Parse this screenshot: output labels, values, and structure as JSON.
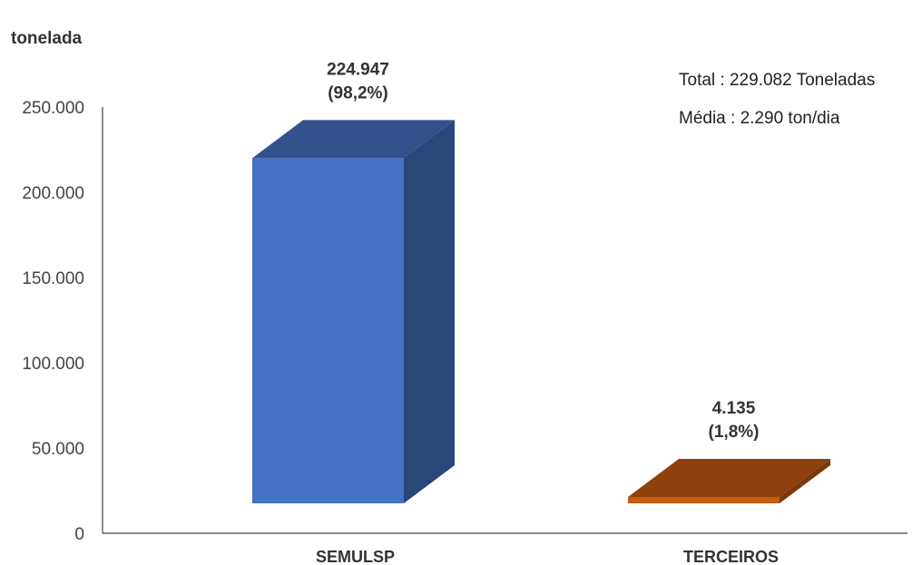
{
  "chart_data": {
    "type": "bar",
    "style": "3d",
    "ylabel": "tonelada",
    "ylim": [
      0,
      250000
    ],
    "yticks": [
      {
        "value": 0,
        "label": "0"
      },
      {
        "value": 50000,
        "label": "50.000"
      },
      {
        "value": 100000,
        "label": "100.000"
      },
      {
        "value": 150000,
        "label": "150.000"
      },
      {
        "value": 200000,
        "label": "200.000"
      },
      {
        "value": 250000,
        "label": "250.000"
      }
    ],
    "categories": [
      "SEMULSP",
      "TERCEIROS"
    ],
    "values": [
      224947,
      4135
    ],
    "data_labels": [
      {
        "value": "224.947",
        "percent": "(98,2%)"
      },
      {
        "value": "4.135",
        "percent": "(1,8%)"
      }
    ],
    "colors": [
      "#4472c4",
      "#c55a11"
    ],
    "grid": false,
    "annotations": [
      "Total : 229.082 Toneladas",
      "Média : 2.290 ton/dia"
    ]
  }
}
